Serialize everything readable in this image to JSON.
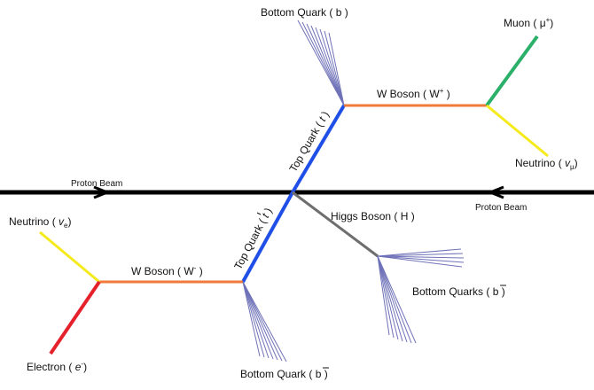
{
  "beams": {
    "left_label": "Proton Beam",
    "right_label": "Proton Beam"
  },
  "particles": {
    "top_quark_upper": {
      "name": "Top Quark (",
      "symbol": "t",
      "close": ")",
      "color": "#1f4fe6"
    },
    "top_quark_lower": {
      "name": "Top Quark (",
      "symbol": "t",
      "close": ")",
      "color": "#1f4fe6"
    },
    "higgs": {
      "label": "Higgs Boson ( H )",
      "color": "#6e6e6e"
    },
    "w_plus": {
      "name": "W Boson ( W",
      "charge": "+",
      "close": " )",
      "color": "#f07a3a"
    },
    "w_minus": {
      "name": "W Boson ( W",
      "charge": "-",
      "close": " )",
      "color": "#f07a3a"
    },
    "muon": {
      "name": "Muon (",
      "symbol": "μ",
      "charge": "+",
      "close": ")",
      "color": "#2bb06a"
    },
    "neutrino_mu": {
      "name": "Neutrino (",
      "symbol": "v",
      "sub": "μ",
      "close": ")",
      "color": "#f4ea1c"
    },
    "neutrino_e": {
      "name": "Neutrino (",
      "symbol": "v",
      "sub": "e",
      "close": ")",
      "color": "#f4ea1c"
    },
    "electron": {
      "name": "Electron (",
      "symbol": "e",
      "charge": "-",
      "close": ")",
      "color": "#e5222b"
    },
    "bottom_quark_top": {
      "label": "Bottom Quark ( b )"
    },
    "bottom_quark_bottom": {
      "name": "Bottom Quark (",
      "symbol": "b",
      "close": ")"
    },
    "bottom_quarks_higgs": {
      "name": "Bottom Quarks (",
      "symbol": "b",
      "close": ")"
    }
  },
  "colors": {
    "beam": "#000000",
    "jet": "#6f72b8"
  }
}
